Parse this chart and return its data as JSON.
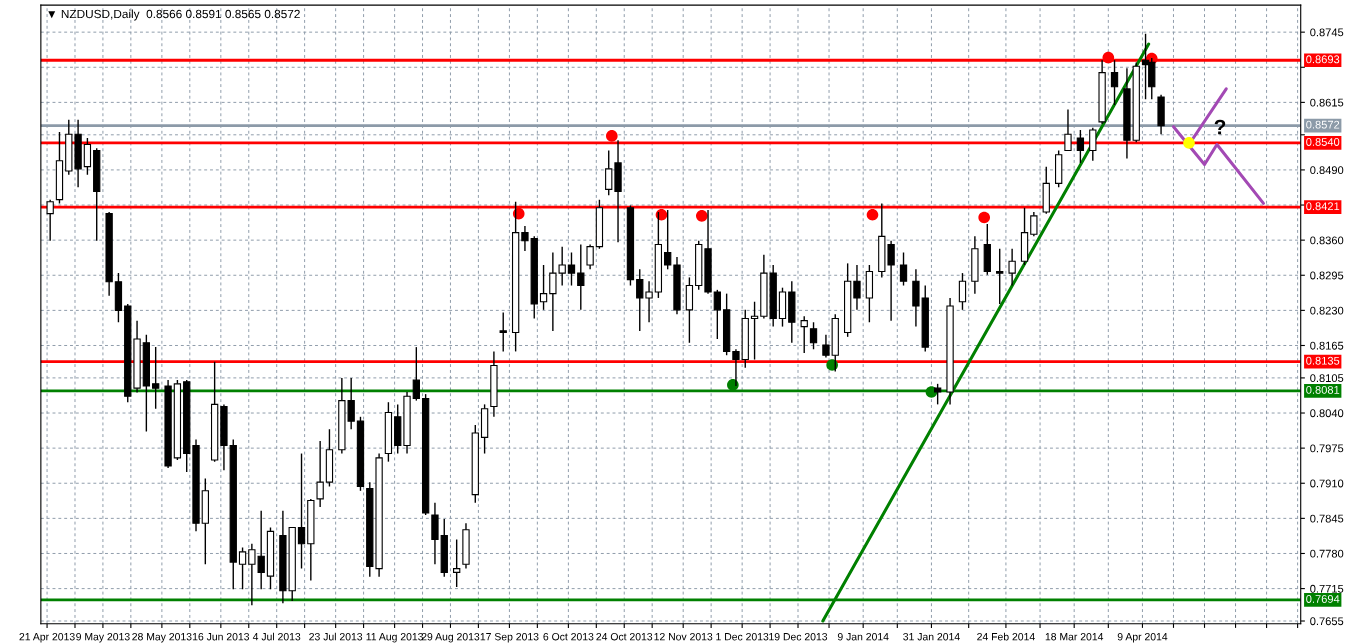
{
  "chart_data": {
    "type": "candlestick",
    "title": "▼ NZDUSD,Daily  0.8566 0.8591 0.8565 0.8572",
    "x": [
      "2013-04-22",
      "2013-04-25",
      "2013-04-28",
      "2013-05-01",
      "2013-05-04",
      "2013-05-07",
      "2013-05-11",
      "2013-05-14",
      "2013-05-17",
      "2013-05-20",
      "2013-05-23",
      "2013-05-26",
      "2013-05-30",
      "2013-06-02",
      "2013-06-05",
      "2013-06-08",
      "2013-06-11",
      "2013-06-14",
      "2013-06-17",
      "2013-06-20",
      "2013-06-23",
      "2013-06-26",
      "2013-06-29",
      "2013-07-02",
      "2013-07-06",
      "2013-07-09",
      "2013-07-12",
      "2013-07-15",
      "2013-07-18",
      "2013-07-21",
      "2013-07-25",
      "2013-07-28",
      "2013-07-31",
      "2013-08-03",
      "2013-08-06",
      "2013-08-09",
      "2013-08-12",
      "2013-08-15",
      "2013-08-18",
      "2013-08-21",
      "2013-08-24",
      "2013-08-27",
      "2013-08-31",
      "2013-09-03",
      "2013-09-06",
      "2013-09-09",
      "2013-09-12",
      "2013-09-15",
      "2013-09-19",
      "2013-09-22",
      "2013-09-25",
      "2013-09-28",
      "2013-10-01",
      "2013-10-04",
      "2013-10-07",
      "2013-10-10",
      "2013-10-13",
      "2013-10-16",
      "2013-10-19",
      "2013-10-22",
      "2013-10-26",
      "2013-10-29",
      "2013-11-01",
      "2013-11-04",
      "2013-11-07",
      "2013-11-10",
      "2013-11-14",
      "2013-11-17",
      "2013-11-20",
      "2013-11-23",
      "2013-11-26",
      "2013-11-29",
      "2013-12-02",
      "2013-12-05",
      "2013-12-08",
      "2013-12-11",
      "2013-12-14",
      "2013-12-17",
      "2013-12-21",
      "2013-12-24",
      "2013-12-28",
      "2013-12-31",
      "2014-01-04",
      "2014-01-07",
      "2014-01-11",
      "2014-01-15",
      "2014-01-18",
      "2014-01-22",
      "2014-01-26",
      "2014-01-29",
      "2014-02-02",
      "2014-02-06",
      "2014-02-10",
      "2014-02-14",
      "2014-02-18",
      "2014-02-22",
      "2014-02-26",
      "2014-03-02",
      "2014-03-05",
      "2014-03-09",
      "2014-03-13",
      "2014-03-16",
      "2014-03-20",
      "2014-03-24",
      "2014-03-27",
      "2014-03-31",
      "2014-04-04",
      "2014-04-07",
      "2014-04-10",
      "2014-04-12",
      "2014-04-15"
    ],
    "ohlc": [
      [
        0.8409,
        0.8435,
        0.8359,
        0.8431
      ],
      [
        0.8435,
        0.856,
        0.8428,
        0.8507
      ],
      [
        0.8488,
        0.8583,
        0.8481,
        0.8556
      ],
      [
        0.8556,
        0.8583,
        0.8458,
        0.8492
      ],
      [
        0.8496,
        0.8549,
        0.8481,
        0.8537
      ],
      [
        0.8526,
        0.853,
        0.8359,
        0.845
      ],
      [
        0.8409,
        0.8412,
        0.8257,
        0.8283
      ],
      [
        0.8283,
        0.8299,
        0.8208,
        0.823
      ],
      [
        0.8238,
        0.8242,
        0.806,
        0.8071
      ],
      [
        0.8086,
        0.8211,
        0.8078,
        0.8177
      ],
      [
        0.817,
        0.8185,
        0.8006,
        0.809
      ],
      [
        0.8094,
        0.8162,
        0.8048,
        0.8086
      ],
      [
        0.809,
        0.8101,
        0.7938,
        0.7942
      ],
      [
        0.7957,
        0.8101,
        0.7953,
        0.8094
      ],
      [
        0.8098,
        0.8101,
        0.7931,
        0.7965
      ],
      [
        0.798,
        0.7991,
        0.7821,
        0.7836
      ],
      [
        0.7836,
        0.7919,
        0.776,
        0.7896
      ],
      [
        0.7953,
        0.8135,
        0.795,
        0.8056
      ],
      [
        0.8052,
        0.8056,
        0.7934,
        0.798
      ],
      [
        0.798,
        0.7991,
        0.7714,
        0.7764
      ],
      [
        0.776,
        0.7791,
        0.7714,
        0.7783
      ],
      [
        0.776,
        0.7798,
        0.7684,
        0.7787
      ],
      [
        0.7775,
        0.7859,
        0.7714,
        0.7745
      ],
      [
        0.7738,
        0.7828,
        0.7714,
        0.7821
      ],
      [
        0.7813,
        0.7859,
        0.7688,
        0.7711
      ],
      [
        0.7711,
        0.7829,
        0.7692,
        0.7828
      ],
      [
        0.7828,
        0.7965,
        0.7752,
        0.7798
      ],
      [
        0.7798,
        0.7881,
        0.773,
        0.7878
      ],
      [
        0.7881,
        0.7988,
        0.7866,
        0.7912
      ],
      [
        0.7912,
        0.801,
        0.7904,
        0.7972
      ],
      [
        0.7972,
        0.8105,
        0.7965,
        0.8063
      ],
      [
        0.8063,
        0.8105,
        0.801,
        0.8025
      ],
      [
        0.8025,
        0.8033,
        0.7896,
        0.7904
      ],
      [
        0.79,
        0.7912,
        0.7737,
        0.7756
      ],
      [
        0.7752,
        0.7965,
        0.7737,
        0.7957
      ],
      [
        0.7965,
        0.806,
        0.795,
        0.8041
      ],
      [
        0.8033,
        0.8056,
        0.7965,
        0.798
      ],
      [
        0.798,
        0.8079,
        0.7965,
        0.8071
      ],
      [
        0.8101,
        0.8162,
        0.8063,
        0.8067
      ],
      [
        0.8067,
        0.8075,
        0.7851,
        0.7855
      ],
      [
        0.7851,
        0.7874,
        0.776,
        0.7806
      ],
      [
        0.7813,
        0.7844,
        0.7737,
        0.7745
      ],
      [
        0.7745,
        0.7806,
        0.7718,
        0.7752
      ],
      [
        0.776,
        0.7836,
        0.7752,
        0.7824
      ],
      [
        0.7889,
        0.8018,
        0.7874,
        0.8003
      ],
      [
        0.7995,
        0.8056,
        0.7965,
        0.8048
      ],
      [
        0.8052,
        0.8154,
        0.8033,
        0.8128
      ],
      [
        0.8192,
        0.8226,
        0.8154,
        0.8189
      ],
      [
        0.8189,
        0.8431,
        0.8154,
        0.8374
      ],
      [
        0.8374,
        0.8386,
        0.834,
        0.8359
      ],
      [
        0.8363,
        0.8367,
        0.8215,
        0.8242
      ],
      [
        0.8246,
        0.8314,
        0.8231,
        0.8261
      ],
      [
        0.8261,
        0.8337,
        0.8192,
        0.8299
      ],
      [
        0.8299,
        0.8348,
        0.8276,
        0.8314
      ],
      [
        0.8314,
        0.8337,
        0.8276,
        0.8299
      ],
      [
        0.8299,
        0.8352,
        0.8231,
        0.8276
      ],
      [
        0.8314,
        0.8352,
        0.8306,
        0.8348
      ],
      [
        0.8348,
        0.8435,
        0.8344,
        0.842
      ],
      [
        0.8454,
        0.8526,
        0.8443,
        0.8492
      ],
      [
        0.8503,
        0.8545,
        0.8356,
        0.845
      ],
      [
        0.842,
        0.8424,
        0.8276,
        0.8287
      ],
      [
        0.8287,
        0.8306,
        0.8192,
        0.8253
      ],
      [
        0.8253,
        0.8284,
        0.8208,
        0.8264
      ],
      [
        0.8264,
        0.8412,
        0.8253,
        0.8352
      ],
      [
        0.8337,
        0.8416,
        0.8306,
        0.8314
      ],
      [
        0.8314,
        0.8329,
        0.8223,
        0.8231
      ],
      [
        0.8231,
        0.8291,
        0.817,
        0.8276
      ],
      [
        0.8276,
        0.8359,
        0.8268,
        0.8352
      ],
      [
        0.8344,
        0.8416,
        0.8261,
        0.8264
      ],
      [
        0.8264,
        0.8268,
        0.8177,
        0.8231
      ],
      [
        0.8231,
        0.8261,
        0.8147,
        0.8154
      ],
      [
        0.8154,
        0.8158,
        0.809,
        0.8139
      ],
      [
        0.8139,
        0.8231,
        0.8124,
        0.8215
      ],
      [
        0.8215,
        0.8246,
        0.8139,
        0.8219
      ],
      [
        0.8219,
        0.8333,
        0.8215,
        0.8299
      ],
      [
        0.8299,
        0.8314,
        0.82,
        0.8215
      ],
      [
        0.8215,
        0.8272,
        0.82,
        0.8264
      ],
      [
        0.8264,
        0.8284,
        0.817,
        0.8208
      ],
      [
        0.82,
        0.8219,
        0.8151,
        0.8211
      ],
      [
        0.8196,
        0.8208,
        0.8158,
        0.817
      ],
      [
        0.8166,
        0.8185,
        0.8143,
        0.8147
      ],
      [
        0.8147,
        0.8223,
        0.8117,
        0.8215
      ],
      [
        0.8189,
        0.8317,
        0.8181,
        0.8284
      ],
      [
        0.8284,
        0.8314,
        0.8231,
        0.8253
      ],
      [
        0.8253,
        0.8314,
        0.8208,
        0.8302
      ],
      [
        0.8302,
        0.8428,
        0.8291,
        0.8367
      ],
      [
        0.8352,
        0.8359,
        0.8211,
        0.8314
      ],
      [
        0.8314,
        0.8337,
        0.8276,
        0.8284
      ],
      [
        0.8284,
        0.8306,
        0.82,
        0.8238
      ],
      [
        0.8253,
        0.8276,
        0.8154,
        0.8162
      ],
      [
        0.8086,
        0.8094,
        0.8056,
        0.8079
      ],
      [
        0.8079,
        0.8253,
        0.8056,
        0.8238
      ],
      [
        0.8246,
        0.8299,
        0.8231,
        0.8284
      ],
      [
        0.8284,
        0.8367,
        0.8261,
        0.8344
      ],
      [
        0.8352,
        0.839,
        0.8296,
        0.8302
      ],
      [
        0.8302,
        0.8344,
        0.8242,
        0.8299
      ],
      [
        0.8299,
        0.8344,
        0.8276,
        0.8321
      ],
      [
        0.8321,
        0.842,
        0.8314,
        0.8374
      ],
      [
        0.8371,
        0.8412,
        0.8367,
        0.8405
      ],
      [
        0.8412,
        0.8496,
        0.8409,
        0.8465
      ],
      [
        0.8465,
        0.8526,
        0.8458,
        0.8518
      ],
      [
        0.8526,
        0.8602,
        0.8526,
        0.8556
      ],
      [
        0.8549,
        0.8564,
        0.8503,
        0.8526
      ],
      [
        0.8526,
        0.8568,
        0.8507,
        0.8564
      ],
      [
        0.8579,
        0.8693,
        0.8575,
        0.867
      ],
      [
        0.867,
        0.8693,
        0.861,
        0.8644
      ],
      [
        0.864,
        0.8678,
        0.8511,
        0.8545
      ],
      [
        0.8545,
        0.8689,
        0.8541,
        0.8682
      ],
      [
        0.8693,
        0.8742,
        0.8621,
        0.8685
      ],
      [
        0.8689,
        0.8697,
        0.8621,
        0.8644
      ],
      [
        0.8625,
        0.8629,
        0.8556,
        0.8572
      ]
    ],
    "series": [
      {
        "type": "line",
        "color": "#008000",
        "x": [
          "2013-12-27",
          "2014-04-11"
        ],
        "values": [
          0.7655,
          0.8723
        ]
      },
      {
        "type": "line",
        "color": "#a349b4",
        "x": [
          "2014-04-19",
          "2014-04-29",
          "2014-05-03",
          "2014-05-18"
        ],
        "values": [
          0.857,
          0.85,
          0.8537,
          0.8428
        ]
      },
      {
        "type": "line",
        "color": "#a349b4",
        "x": [
          "2014-04-24",
          "2014-05-06"
        ],
        "values": [
          0.8537,
          0.864
        ]
      },
      {
        "type": "scatter",
        "marker": "circle",
        "color": "#ff0000",
        "x": [
          "2013-09-20",
          "2013-10-20",
          "2013-11-05",
          "2013-11-18",
          "2014-01-12",
          "2014-02-17",
          "2014-03-29",
          "2014-04-12"
        ],
        "values": [
          0.8409,
          0.8553,
          0.8407,
          0.8405,
          0.8407,
          0.8402,
          0.8698,
          0.8696
        ]
      },
      {
        "type": "scatter",
        "marker": "circle",
        "color": "#008000",
        "x": [
          "2013-11-28",
          "2013-12-30",
          "2014-01-31"
        ],
        "values": [
          0.8092,
          0.8129,
          0.8079
        ]
      },
      {
        "type": "scatter",
        "marker": "circle",
        "color": "#ffff00",
        "x": [
          "2014-04-24"
        ],
        "values": [
          0.854
        ]
      }
    ],
    "xlim": [
      "2013-04-19",
      "2014-05-30"
    ],
    "xticks": [
      {
        "value": "2013-04-21",
        "label": "21 Apr 2013"
      },
      {
        "value": "2013-04-30",
        "label": null
      },
      {
        "value": "2013-05-09",
        "label": "9 May 2013"
      },
      {
        "value": "2013-05-18",
        "label": null
      },
      {
        "value": "2013-05-28",
        "label": "28 May 2013"
      },
      {
        "value": "2013-06-06",
        "label": null
      },
      {
        "value": "2013-06-16",
        "label": "16 Jun 2013"
      },
      {
        "value": "2013-06-25",
        "label": null
      },
      {
        "value": "2013-07-04",
        "label": "4 Jul 2013"
      },
      {
        "value": "2013-07-13",
        "label": null
      },
      {
        "value": "2013-07-23",
        "label": "23 Jul 2013"
      },
      {
        "value": "2013-08-01",
        "label": null
      },
      {
        "value": "2013-08-11",
        "label": "11 Aug 2013"
      },
      {
        "value": "2013-08-20",
        "label": null
      },
      {
        "value": "2013-08-29",
        "label": "29 Aug 2013"
      },
      {
        "value": "2013-09-07",
        "label": null
      },
      {
        "value": "2013-09-17",
        "label": "17 Sep 2013"
      },
      {
        "value": "2013-09-26",
        "label": null
      },
      {
        "value": "2013-10-06",
        "label": "6 Oct 2013"
      },
      {
        "value": "2013-10-15",
        "label": null
      },
      {
        "value": "2013-10-24",
        "label": "24 Oct 2013"
      },
      {
        "value": "2013-11-02",
        "label": null
      },
      {
        "value": "2013-11-12",
        "label": "12 Nov 2013"
      },
      {
        "value": "2013-11-21",
        "label": null
      },
      {
        "value": "2013-12-01",
        "label": "1 Dec 2013"
      },
      {
        "value": "2013-12-10",
        "label": null
      },
      {
        "value": "2013-12-19",
        "label": "19 Dec 2013"
      },
      {
        "value": "2013-12-29",
        "label": null
      },
      {
        "value": "2014-01-09",
        "label": "9 Jan 2014"
      },
      {
        "value": "2014-01-20",
        "label": null
      },
      {
        "value": "2014-01-31",
        "label": "31 Jan 2014"
      },
      {
        "value": "2014-02-12",
        "label": null
      },
      {
        "value": "2014-02-24",
        "label": "24 Feb 2014"
      },
      {
        "value": "2014-03-07",
        "label": null
      },
      {
        "value": "2014-03-18",
        "label": "18 Mar 2014"
      },
      {
        "value": "2014-03-29",
        "label": null
      },
      {
        "value": "2014-04-09",
        "label": "9 Apr 2014"
      },
      {
        "value": "2014-04-19",
        "label": null
      },
      {
        "value": "2014-04-29",
        "label": null
      },
      {
        "value": "2014-05-09",
        "label": null
      },
      {
        "value": "2014-05-19",
        "label": null
      },
      {
        "value": "2014-05-29",
        "label": null
      }
    ],
    "ylim": [
      0.765,
      0.8795
    ],
    "yticks": [
      0.8745,
      {
        "value": 0.868,
        "label": null
      },
      0.8615,
      {
        "value": 0.8555,
        "label": null
      },
      {
        "value": 0.849,
        "label": "0.8490"
      },
      {
        "value": 0.8425,
        "label": null
      },
      {
        "value": 0.836,
        "label": "0.8360"
      },
      0.8295,
      {
        "value": 0.823,
        "label": "0.8230"
      },
      0.8165,
      0.8105,
      {
        "value": 0.804,
        "label": "0.8040"
      },
      0.7975,
      {
        "value": 0.791,
        "label": "0.7910"
      },
      0.7845,
      {
        "value": 0.778,
        "label": "0.7780"
      },
      0.7715,
      0.7655
    ],
    "grid": true,
    "ref_lines": [
      {
        "axis": "y",
        "value": 0.8693,
        "label": "0.8693",
        "color": "#ff0000"
      },
      {
        "axis": "y",
        "value": 0.8572,
        "label": "0.8572",
        "color": "#8c9aa8"
      },
      {
        "axis": "y",
        "value": 0.854,
        "label": "0.8540",
        "color": "#ff0000"
      },
      {
        "axis": "y",
        "value": 0.8421,
        "label": "0.8421",
        "color": "#ff0000"
      },
      {
        "axis": "y",
        "value": 0.8135,
        "label": "0.8135",
        "color": "#ff0000"
      },
      {
        "axis": "y",
        "value": 0.8081,
        "label": "0.8081",
        "color": "#008000"
      },
      {
        "axis": "y",
        "value": 0.7694,
        "label": "0.7694",
        "color": "#008000"
      }
    ],
    "annotations": [
      {
        "text": "?",
        "x": "2014-05-04",
        "y": 0.8566
      }
    ]
  }
}
